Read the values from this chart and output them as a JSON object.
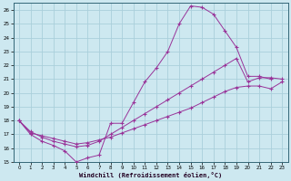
{
  "xlabel": "Windchill (Refroidissement éolien,°C)",
  "bg_color": "#cde8f0",
  "grid_color": "#aacfdb",
  "line_color": "#993399",
  "xlim": [
    -0.5,
    23.5
  ],
  "ylim": [
    15,
    26.5
  ],
  "xticks": [
    0,
    1,
    2,
    3,
    4,
    5,
    6,
    7,
    8,
    9,
    10,
    11,
    12,
    13,
    14,
    15,
    16,
    17,
    18,
    19,
    20,
    21,
    22,
    23
  ],
  "yticks": [
    15,
    16,
    17,
    18,
    19,
    20,
    21,
    22,
    23,
    24,
    25,
    26
  ],
  "series1_x": [
    0,
    1,
    2,
    3,
    4,
    5,
    6,
    7,
    8,
    9,
    10,
    11,
    12,
    13,
    14,
    15,
    16,
    17,
    18,
    19,
    20,
    21,
    22
  ],
  "series1_y": [
    18,
    17,
    16.5,
    16.2,
    15.8,
    15.0,
    15.3,
    15.5,
    17.8,
    17.8,
    19.3,
    20.8,
    21.8,
    23.0,
    25.0,
    26.3,
    26.2,
    25.7,
    24.5,
    23.3,
    21.2,
    21.2,
    21.0
  ],
  "series2_x": [
    0,
    1,
    2,
    3,
    4,
    5,
    6,
    7,
    8,
    9,
    10,
    11,
    12,
    13,
    14,
    15,
    16,
    17,
    18,
    19,
    20,
    21,
    22,
    23
  ],
  "series2_y": [
    18,
    17.2,
    16.8,
    16.5,
    16.3,
    16.1,
    16.2,
    16.5,
    17.0,
    17.5,
    18.0,
    18.5,
    19.0,
    19.5,
    20.0,
    20.5,
    21.0,
    21.5,
    22.0,
    22.5,
    20.8,
    21.1,
    21.1,
    21.0
  ],
  "series3_x": [
    0,
    1,
    2,
    3,
    4,
    5,
    6,
    7,
    8,
    9,
    10,
    11,
    12,
    13,
    14,
    15,
    16,
    17,
    18,
    19,
    20,
    21,
    22,
    23
  ],
  "series3_y": [
    18,
    17.1,
    16.9,
    16.7,
    16.5,
    16.3,
    16.4,
    16.6,
    16.8,
    17.1,
    17.4,
    17.7,
    18.0,
    18.3,
    18.6,
    18.9,
    19.3,
    19.7,
    20.1,
    20.4,
    20.5,
    20.5,
    20.3,
    20.8
  ]
}
